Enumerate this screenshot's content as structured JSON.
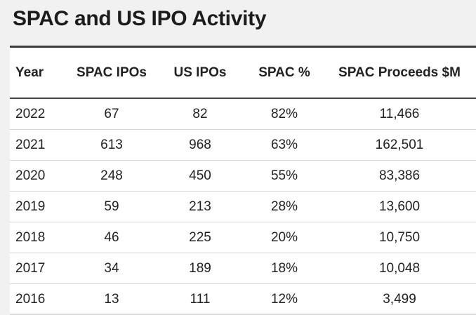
{
  "title": "SPAC and US IPO Activity",
  "table": {
    "headers": [
      "Year",
      "SPAC IPOs",
      "US IPOs",
      "SPAC %",
      "SPAC Proceeds $M"
    ],
    "rows": [
      [
        "2022",
        "67",
        "82",
        "82%",
        "11,466"
      ],
      [
        "2021",
        "613",
        "968",
        "63%",
        "162,501"
      ],
      [
        "2020",
        "248",
        "450",
        "55%",
        "83,386"
      ],
      [
        "2019",
        "59",
        "213",
        "28%",
        "13,600"
      ],
      [
        "2018",
        "46",
        "225",
        "20%",
        "10,750"
      ],
      [
        "2017",
        "34",
        "189",
        "18%",
        "10,048"
      ],
      [
        "2016",
        "13",
        "111",
        "12%",
        "3,499"
      ]
    ]
  }
}
